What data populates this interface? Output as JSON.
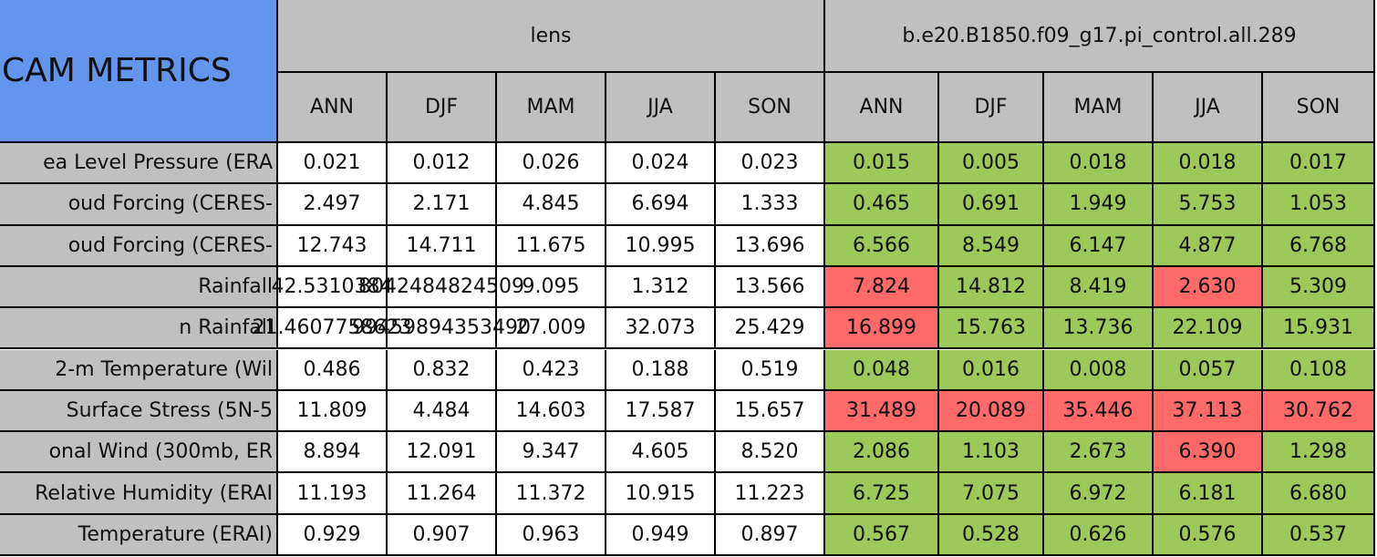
{
  "header": {
    "title": "CAM METRICS"
  },
  "groups": [
    {
      "name": "lens",
      "seasons": [
        "ANN",
        "DJF",
        "MAM",
        "JJA",
        "SON"
      ]
    },
    {
      "name": "b.e20.B1850.f09_g17.pi_control.all.289",
      "seasons": [
        "ANN",
        "DJF",
        "MAM",
        "JJA",
        "SON"
      ]
    }
  ],
  "colors": {
    "header": "#c0c0c0",
    "title": "#6495ed",
    "good": "#9dc85a",
    "bad": "#fe6a6a",
    "plain": "#ffffff",
    "label": "#c0c0c0"
  },
  "rows": [
    {
      "label": "ea Level Pressure (ERA",
      "values": [
        "0.021",
        "0.012",
        "0.026",
        "0.024",
        "0.023",
        "0.015",
        "0.005",
        "0.018",
        "0.018",
        "0.017"
      ],
      "status": [
        "plain",
        "plain",
        "plain",
        "plain",
        "plain",
        "good",
        "good",
        "good",
        "good",
        "good"
      ]
    },
    {
      "label": "oud Forcing (CERES-",
      "values": [
        "2.497",
        "2.171",
        "4.845",
        "6.694",
        "1.333",
        "0.465",
        "0.691",
        "1.949",
        "5.753",
        "1.053"
      ],
      "status": [
        "plain",
        "plain",
        "plain",
        "plain",
        "plain",
        "good",
        "good",
        "good",
        "good",
        "good"
      ]
    },
    {
      "label": "oud Forcing (CERES-",
      "values": [
        "12.743",
        "14.711",
        "11.675",
        "10.995",
        "13.696",
        "6.566",
        "8.549",
        "6.147",
        "4.877",
        "6.768"
      ],
      "status": [
        "plain",
        "plain",
        "plain",
        "plain",
        "plain",
        "good",
        "good",
        "good",
        "good",
        "good"
      ]
    },
    {
      "label": "Rainfall",
      "values": [
        "42.5310384",
        "8042484824509",
        "9.095",
        "1.312",
        "13.566",
        "7.824",
        "14.812",
        "8.419",
        "2.630",
        "5.309"
      ],
      "status": [
        "plain",
        "plain",
        "plain",
        "plain",
        "plain",
        "bad",
        "good",
        "good",
        "bad",
        "good"
      ]
    },
    {
      "label": "n Rainfall",
      "values": [
        "21.4607758623",
        "99459894353490",
        "27.009",
        "32.073",
        "25.429",
        "16.899",
        "15.763",
        "13.736",
        "22.109",
        "15.931"
      ],
      "status": [
        "plain",
        "plain",
        "plain",
        "plain",
        "plain",
        "bad",
        "good",
        "good",
        "good",
        "good"
      ]
    },
    {
      "label": "2-m Temperature (Wil",
      "values": [
        "0.486",
        "0.832",
        "0.423",
        "0.188",
        "0.519",
        "0.048",
        "0.016",
        "0.008",
        "0.057",
        "0.108"
      ],
      "status": [
        "plain",
        "plain",
        "plain",
        "plain",
        "plain",
        "good",
        "good",
        "good",
        "good",
        "good"
      ]
    },
    {
      "label": "Surface Stress (5N-5",
      "values": [
        "11.809",
        "4.484",
        "14.603",
        "17.587",
        "15.657",
        "31.489",
        "20.089",
        "35.446",
        "37.113",
        "30.762"
      ],
      "status": [
        "plain",
        "plain",
        "plain",
        "plain",
        "plain",
        "bad",
        "bad",
        "bad",
        "bad",
        "bad"
      ]
    },
    {
      "label": "onal Wind (300mb, ER",
      "values": [
        "8.894",
        "12.091",
        "9.347",
        "4.605",
        "8.520",
        "2.086",
        "1.103",
        "2.673",
        "6.390",
        "1.298"
      ],
      "status": [
        "plain",
        "plain",
        "plain",
        "plain",
        "plain",
        "good",
        "good",
        "good",
        "bad",
        "good"
      ]
    },
    {
      "label": "Relative Humidity (ERAI",
      "values": [
        "11.193",
        "11.264",
        "11.372",
        "10.915",
        "11.223",
        "6.725",
        "7.075",
        "6.972",
        "6.181",
        "6.680"
      ],
      "status": [
        "plain",
        "plain",
        "plain",
        "plain",
        "plain",
        "good",
        "good",
        "good",
        "good",
        "good"
      ]
    },
    {
      "label": "Temperature (ERAI)",
      "values": [
        "0.929",
        "0.907",
        "0.963",
        "0.949",
        "0.897",
        "0.567",
        "0.528",
        "0.626",
        "0.576",
        "0.537"
      ],
      "status": [
        "plain",
        "plain",
        "plain",
        "plain",
        "plain",
        "good",
        "good",
        "good",
        "good",
        "good"
      ]
    }
  ]
}
